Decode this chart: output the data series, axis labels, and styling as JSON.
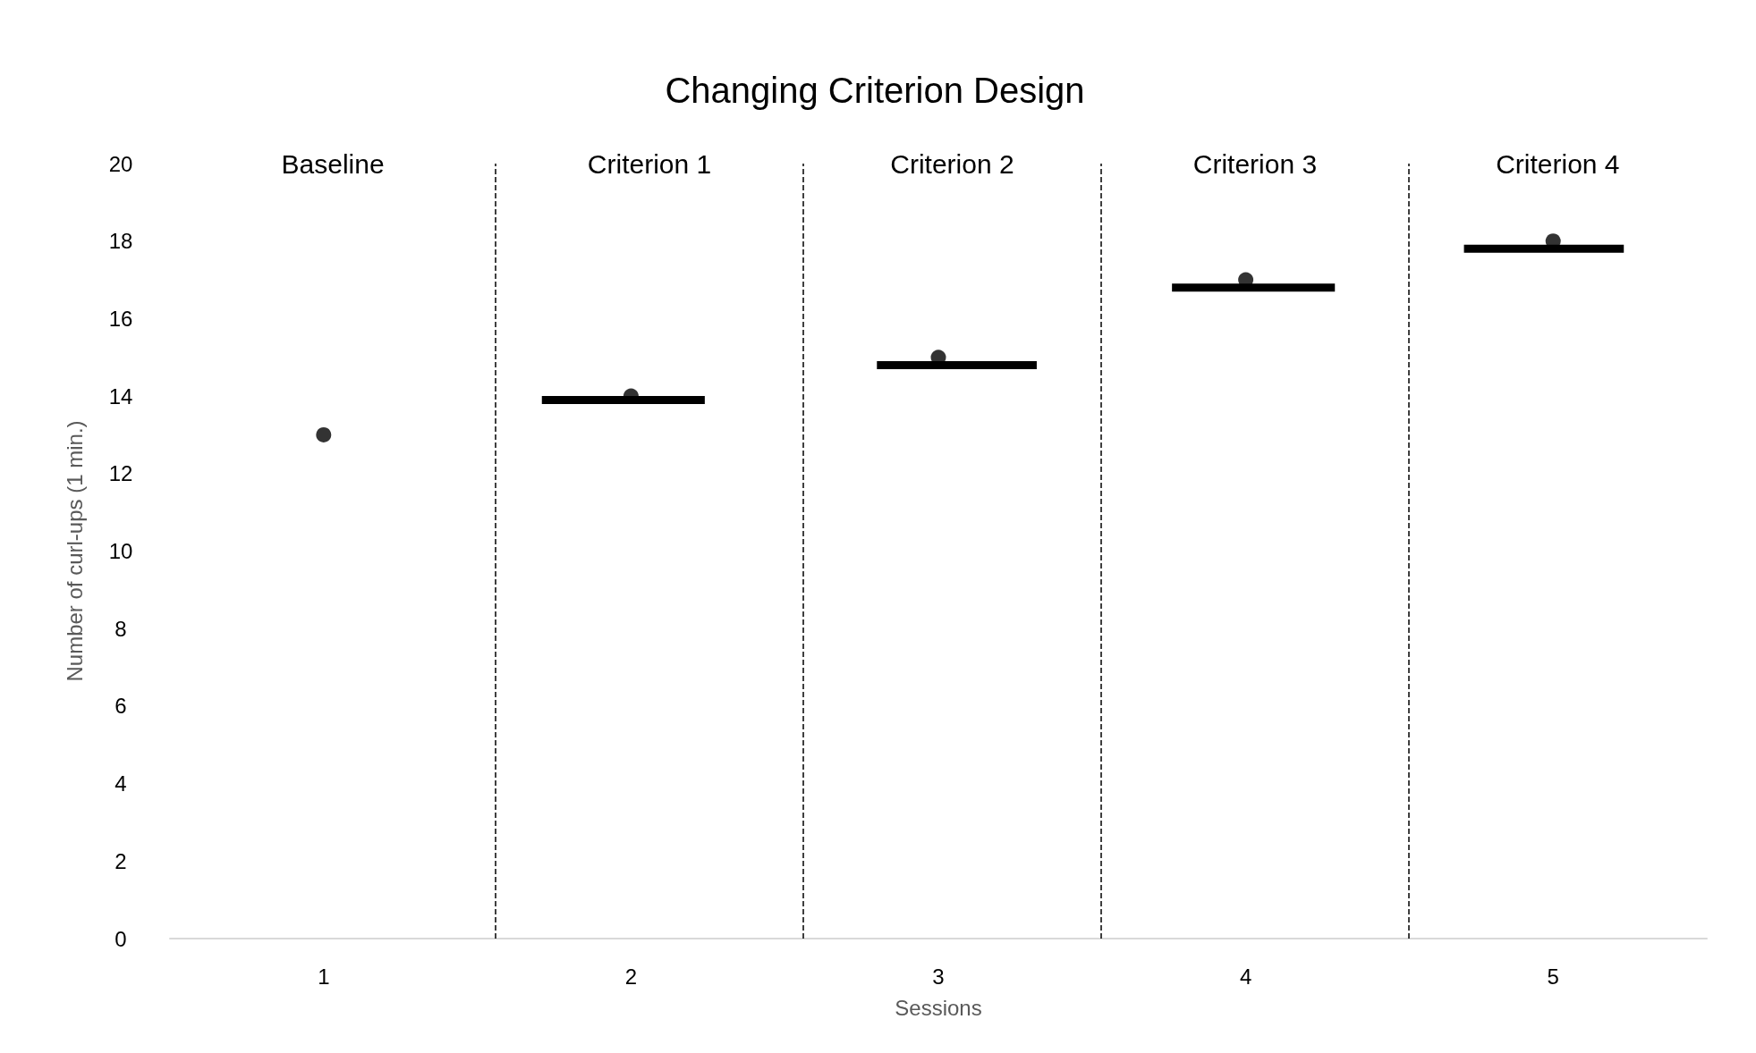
{
  "chart_data": {
    "type": "scatter",
    "title": "Changing Criterion Design",
    "xlabel": "Sessions",
    "ylabel": "Number of curl-ups (1 min.)",
    "x": [
      1,
      2,
      3,
      4,
      5
    ],
    "xlim": [
      0.5,
      5.5
    ],
    "xticks": [
      1,
      2,
      3,
      4,
      5
    ],
    "ylim": [
      0,
      20
    ],
    "yticks": [
      0,
      2,
      4,
      6,
      8,
      10,
      12,
      14,
      16,
      18,
      20
    ],
    "series": [
      {
        "color": "#000000",
        "marker": "circle",
        "values": [
          13,
          14,
          15,
          17,
          18
        ]
      },
      {
        "type": "line",
        "color": "#000000",
        "x": [
          1.71,
          2.24
        ],
        "values": [
          13.9,
          13.9
        ]
      },
      {
        "type": "line",
        "color": "#000000",
        "x": [
          2.8,
          3.32
        ],
        "values": [
          14.8,
          14.8
        ]
      },
      {
        "type": "line",
        "color": "#000000",
        "x": [
          3.76,
          4.29
        ],
        "values": [
          16.8,
          16.8
        ]
      },
      {
        "type": "line",
        "color": "#000000",
        "x": [
          4.71,
          5.23
        ],
        "values": [
          17.8,
          17.8
        ]
      }
    ],
    "ref_lines": [
      {
        "axis": "x",
        "value": 1.56,
        "color": "#000000",
        "line_style": "dashed"
      },
      {
        "axis": "x",
        "value": 2.56,
        "color": "#000000",
        "line_style": "dashed"
      },
      {
        "axis": "x",
        "value": 3.53,
        "color": "#000000",
        "line_style": "dashed"
      },
      {
        "axis": "x",
        "value": 4.53,
        "color": "#000000",
        "line_style": "dashed"
      }
    ],
    "annotations": [
      "Baseline",
      "Criterion 1",
      "Criterion 2",
      "Criterion 3",
      "Criterion 4"
    ],
    "grid": false
  }
}
